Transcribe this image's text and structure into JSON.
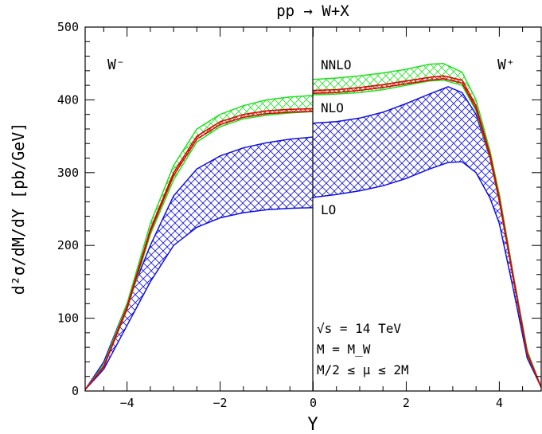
{
  "chart_data": {
    "type": "line",
    "title": "pp → W+X",
    "xlabel": "Y",
    "ylabel": "d²σ/dM/dY [pb/GeV]",
    "xlim": [
      -4.9,
      4.9
    ],
    "ylim": [
      0,
      500
    ],
    "xticks": [
      -4,
      -2,
      0,
      2,
      4
    ],
    "yticks": [
      0,
      100,
      200,
      300,
      400,
      500
    ],
    "grid": false,
    "legend_placement": "inline labels",
    "panel_labels": {
      "left": "W⁻",
      "right": "W⁺"
    },
    "annotations": [
      "√s = 14 TeV",
      "M = M_W",
      "M/2 ≤ μ ≤ 2M"
    ],
    "series": [
      {
        "name": "LO",
        "color": "#1010e0",
        "band": true,
        "x": [
          -4.9,
          -4.5,
          -4.0,
          -3.5,
          -3.0,
          -2.5,
          -2.0,
          -1.5,
          -1.0,
          -0.5,
          0.0
        ],
        "upper": [
          2,
          40,
          120,
          200,
          268,
          305,
          323,
          334,
          341,
          346,
          349
        ],
        "lower": [
          2,
          30,
          90,
          150,
          200,
          225,
          238,
          245,
          249,
          251,
          252
        ],
        "x_right": [
          0.0,
          0.5,
          1.0,
          1.5,
          2.0,
          2.5,
          2.9,
          3.2,
          3.5,
          3.8,
          4.0,
          4.3,
          4.6,
          4.9
        ],
        "upper_right": [
          368,
          370,
          375,
          383,
          395,
          408,
          418,
          410,
          380,
          320,
          270,
          160,
          55,
          5
        ],
        "lower_right": [
          266,
          270,
          275,
          282,
          292,
          305,
          314,
          315,
          300,
          265,
          230,
          140,
          45,
          5
        ]
      },
      {
        "name": "NLO",
        "color": "#20e020",
        "band": true,
        "x": [
          -4.9,
          -4.5,
          -4.0,
          -3.5,
          -3.0,
          -2.5,
          -2.0,
          -1.5,
          -1.0,
          -0.5,
          0.0
        ],
        "upper": [
          2,
          36,
          120,
          230,
          310,
          360,
          380,
          392,
          400,
          404,
          406
        ],
        "lower": [
          2,
          33,
          112,
          215,
          290,
          342,
          363,
          374,
          379,
          382,
          384
        ],
        "x_right": [
          0.0,
          0.5,
          1.0,
          1.5,
          2.0,
          2.5,
          2.8,
          3.2,
          3.5,
          3.8,
          4.0,
          4.3,
          4.6,
          4.9
        ],
        "upper_right": [
          428,
          430,
          433,
          437,
          442,
          449,
          450,
          438,
          400,
          330,
          270,
          160,
          55,
          5
        ],
        "lower_right": [
          407,
          408,
          410,
          414,
          420,
          426,
          427,
          420,
          385,
          320,
          260,
          155,
          50,
          5
        ]
      },
      {
        "name": "NNLO",
        "color": "#e00000",
        "band": true,
        "x": [
          -4.9,
          -4.5,
          -4.0,
          -3.5,
          -3.0,
          -2.5,
          -2.0,
          -1.5,
          -1.0,
          -0.5,
          0.0
        ],
        "upper": [
          2,
          34,
          116,
          222,
          300,
          350,
          370,
          380,
          385,
          387,
          388
        ],
        "lower": [
          2,
          33,
          113,
          219,
          296,
          346,
          366,
          376,
          381,
          383,
          384
        ],
        "x_right": [
          0.0,
          0.5,
          1.0,
          1.5,
          2.0,
          2.5,
          2.8,
          3.2,
          3.5,
          3.8,
          4.0,
          4.3,
          4.6,
          4.9
        ],
        "upper_right": [
          413,
          414,
          417,
          421,
          426,
          431,
          433,
          427,
          392,
          325,
          265,
          157,
          52,
          5
        ],
        "lower_right": [
          409,
          410,
          413,
          417,
          422,
          427,
          429,
          423,
          388,
          321,
          261,
          154,
          50,
          5
        ]
      }
    ]
  }
}
